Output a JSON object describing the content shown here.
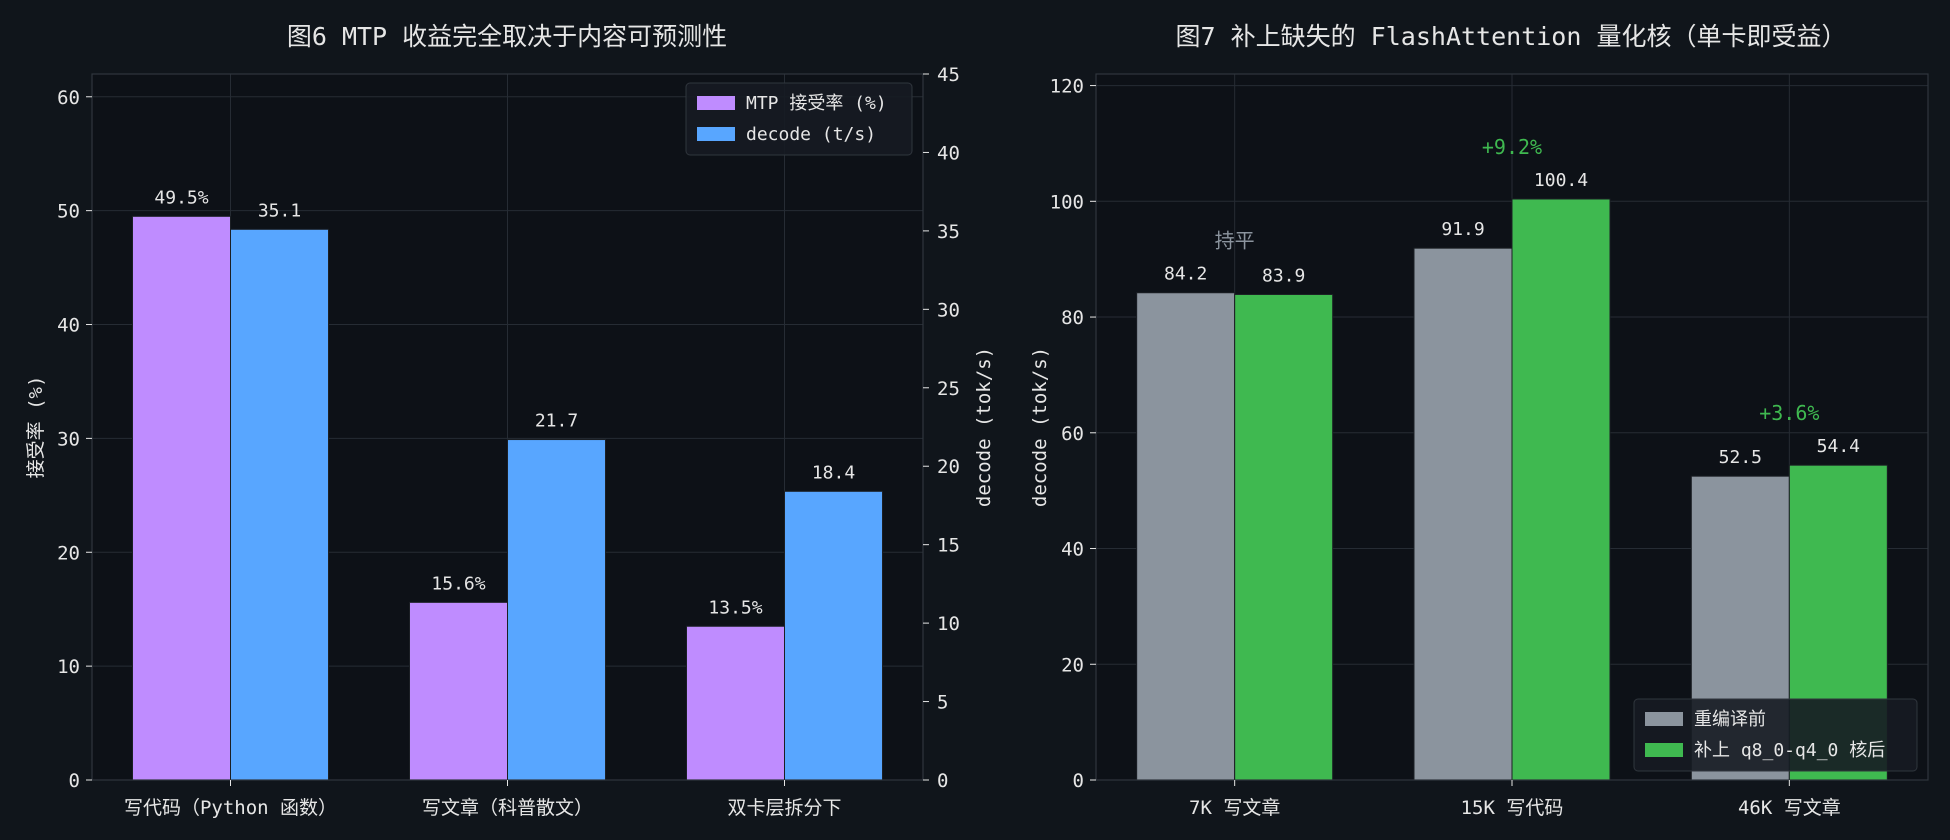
{
  "chart_data": [
    {
      "type": "bar",
      "title": "图6  MTP 收益完全取决于内容可预测性",
      "categories": [
        "写代码（Python 函数）",
        "写文章（科普散文）",
        "双卡层拆分下"
      ],
      "series": [
        {
          "name": "MTP 接受率 (%)",
          "axis": "left",
          "color": "#bf8cff",
          "values": [
            49.5,
            15.6,
            13.5
          ],
          "labels": [
            "49.5%",
            "15.6%",
            "13.5%"
          ]
        },
        {
          "name": "decode (t/s)",
          "axis": "right",
          "color": "#58a6ff",
          "values": [
            35.1,
            21.7,
            18.4
          ],
          "labels": [
            "35.1",
            "21.7",
            "18.4"
          ]
        }
      ],
      "ylabel": "接受率 (%)",
      "ylim": [
        0,
        62
      ],
      "yticks": [
        0,
        10,
        20,
        30,
        40,
        50,
        60
      ],
      "y2label": "decode (tok/s)",
      "y2lim": [
        0,
        45
      ],
      "y2ticks": [
        0,
        5,
        10,
        15,
        20,
        25,
        30,
        35,
        40,
        45
      ],
      "grid": true,
      "legend": "top-right"
    },
    {
      "type": "bar",
      "title": "图7  补上缺失的 FlashAttention 量化核（单卡即受益）",
      "categories": [
        "7K 写文章",
        "15K 写代码",
        "46K 写文章"
      ],
      "series": [
        {
          "name": "重编译前",
          "color": "#8b949e",
          "values": [
            84.2,
            91.9,
            52.5
          ],
          "labels": [
            "84.2",
            "91.9",
            "52.5"
          ]
        },
        {
          "name": "补上 q8_0-q4_0 核后",
          "color": "#3fb950",
          "values": [
            83.9,
            100.4,
            54.4
          ],
          "labels": [
            "83.9",
            "100.4",
            "54.4"
          ]
        }
      ],
      "annotations": [
        {
          "category": "7K 写文章",
          "text": "持平",
          "color": "#8b949e"
        },
        {
          "category": "15K 写代码",
          "text": "+9.2%",
          "color": "#3fb950"
        },
        {
          "category": "46K 写文章",
          "text": "+3.6%",
          "color": "#3fb950"
        }
      ],
      "ylabel": "decode (tok/s)",
      "ylim": [
        0,
        122
      ],
      "yticks": [
        0,
        20,
        40,
        60,
        80,
        100,
        120
      ],
      "grid": true,
      "legend": "bottom-right"
    }
  ]
}
